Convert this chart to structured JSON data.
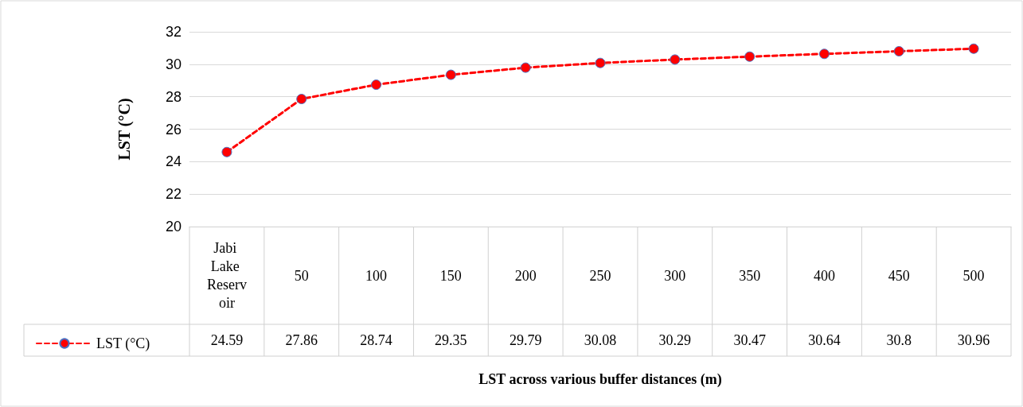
{
  "chart_data": {
    "type": "line",
    "xlabel": "LST across various buffer distances (m)",
    "ylabel": "LST (°C)",
    "categories": [
      "Jabi Lake Reservoir",
      "50",
      "100",
      "150",
      "200",
      "250",
      "300",
      "350",
      "400",
      "450",
      "500"
    ],
    "series": [
      {
        "name": "LST (°C)",
        "color": "#ff0000",
        "values": [
          24.59,
          27.86,
          28.74,
          29.35,
          29.79,
          30.08,
          30.29,
          30.47,
          30.64,
          30.8,
          30.96
        ]
      }
    ],
    "ylim": [
      20,
      32
    ],
    "yticks": [
      20,
      22,
      24,
      26,
      28,
      30,
      32
    ],
    "grid": "y",
    "legend": "bottom left",
    "marker": "circle",
    "line_style": "dashed",
    "data_labels": true
  }
}
